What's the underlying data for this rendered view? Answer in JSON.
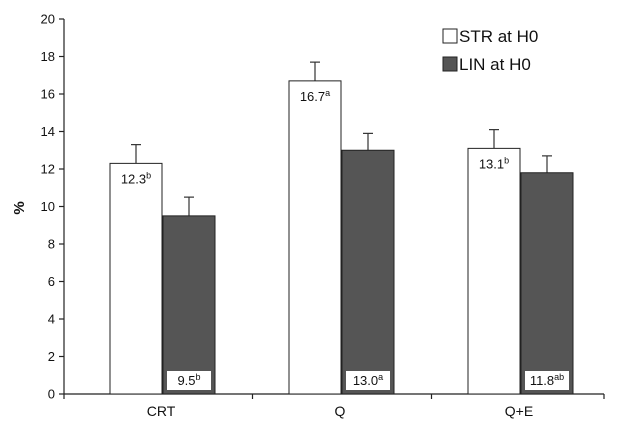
{
  "chart_data": {
    "type": "bar",
    "title": "",
    "xlabel": "",
    "ylabel": "%",
    "ylim": [
      0,
      20
    ],
    "yticks": [
      0,
      2,
      4,
      6,
      8,
      10,
      12,
      14,
      16,
      18,
      20
    ],
    "grid": false,
    "legend_position": "top-right",
    "categories": [
      "CRT",
      "Q",
      "Q+E"
    ],
    "series": [
      {
        "name": "STR at H0",
        "color": "#ffffff",
        "values": [
          12.3,
          16.7,
          13.1
        ],
        "errors": [
          1.0,
          1.0,
          1.0
        ],
        "labels": [
          {
            "value": "12.3",
            "sup": "b"
          },
          {
            "value": "16.7",
            "sup": "a"
          },
          {
            "value": "13.1",
            "sup": "b"
          }
        ]
      },
      {
        "name": "LIN at H0",
        "color": "#555555",
        "values": [
          9.5,
          13.0,
          11.8
        ],
        "errors": [
          1.0,
          0.9,
          0.9
        ],
        "labels": [
          {
            "value": "9.5",
            "sup": "b"
          },
          {
            "value": "13.0",
            "sup": "a"
          },
          {
            "value": "11.8",
            "sup": "ab"
          }
        ]
      }
    ]
  }
}
